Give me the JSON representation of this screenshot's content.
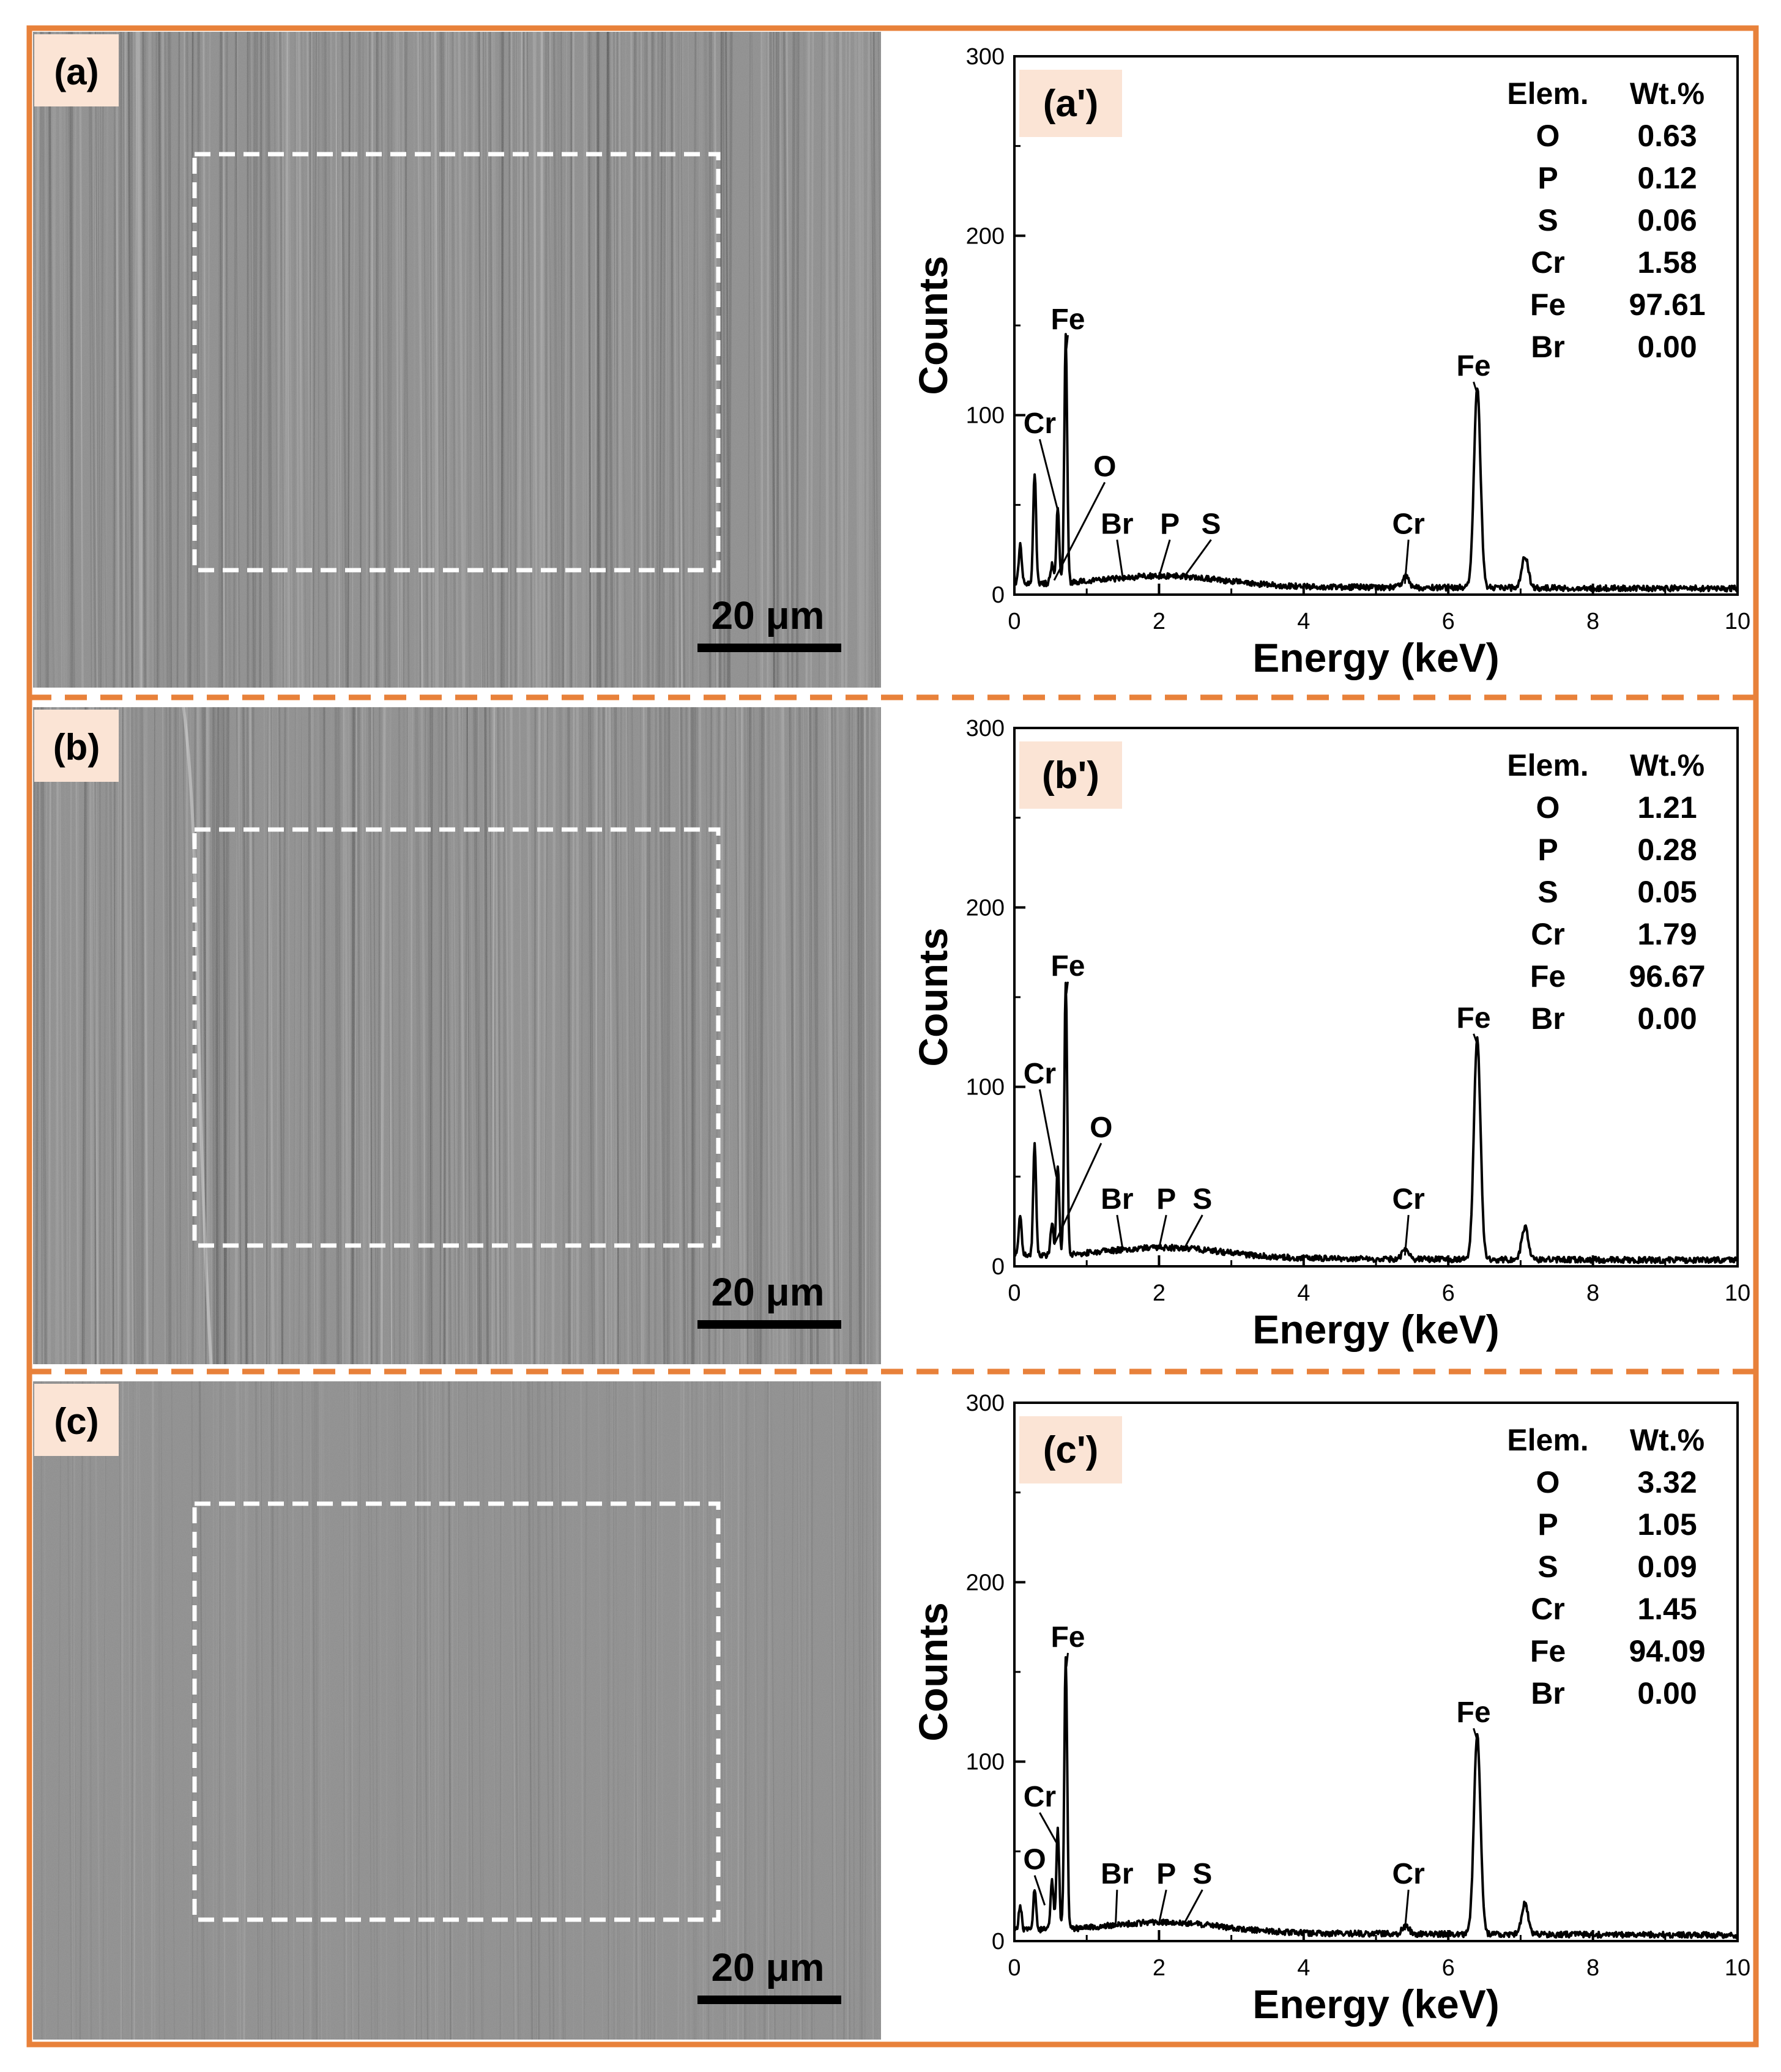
{
  "colors": {
    "frame": "#E8813A",
    "label_bg": "#FBE4D5",
    "sem_base": "#8c8c8c",
    "roi": "#ffffff",
    "ink": "#000000"
  },
  "chart_data": [
    {
      "panel": "a",
      "sem": {
        "label": "(a)",
        "scale_bar_text": "20 μm"
      },
      "spectrum": {
        "type": "line",
        "label": "(a')",
        "xlabel": "Energy (keV)",
        "ylabel": "Counts",
        "xlim": [
          0,
          10
        ],
        "ylim": [
          0,
          300
        ],
        "xticks": [
          "0",
          "2",
          "4",
          "6",
          "8",
          "10"
        ],
        "yticks": [
          "0",
          "100",
          "200",
          "300"
        ],
        "table": {
          "header": [
            "Elem.",
            "Wt.%"
          ],
          "rows": [
            [
              "O",
              "0.63"
            ],
            [
              "P",
              "0.12"
            ],
            [
              "S",
              "0.06"
            ],
            [
              "Cr",
              "1.58"
            ],
            [
              "Fe",
              "97.61"
            ],
            [
              "Br",
              "0.00"
            ]
          ]
        },
        "peaks": [
          {
            "e": 0.08,
            "h": 22
          },
          {
            "e": 0.28,
            "h": 62
          },
          {
            "e": 0.52,
            "h": 10
          },
          {
            "e": 0.6,
            "h": 42
          },
          {
            "e": 0.71,
            "h": 137
          },
          {
            "e": 5.41,
            "h": 6
          },
          {
            "e": 6.4,
            "h": 112
          },
          {
            "e": 7.06,
            "h": 18
          }
        ],
        "annotations": [
          {
            "text": "Fe",
            "e": 0.74,
            "c": 148,
            "pe": 0.72,
            "pc": 137
          },
          {
            "text": "Cr",
            "e": 0.35,
            "c": 90,
            "pe": 0.6,
            "pc": 47
          },
          {
            "text": "O",
            "e": 1.25,
            "c": 66,
            "pe": 0.55,
            "pc": 8
          },
          {
            "text": "Br",
            "e": 1.42,
            "c": 34,
            "pe": 1.5,
            "pc": 9
          },
          {
            "text": "P",
            "e": 2.15,
            "c": 34,
            "pe": 2.0,
            "pc": 10
          },
          {
            "text": "S",
            "e": 2.72,
            "c": 34,
            "pe": 2.35,
            "pc": 10
          },
          {
            "text": "Cr",
            "e": 5.45,
            "c": 34,
            "pe": 5.4,
            "pc": 6
          },
          {
            "text": "Fe",
            "e": 6.35,
            "c": 122,
            "pe": 6.4,
            "pc": 112
          }
        ]
      }
    },
    {
      "panel": "b",
      "sem": {
        "label": "(b)",
        "scale_bar_text": "20 μm"
      },
      "spectrum": {
        "type": "line",
        "label": "(b')",
        "xlabel": "Energy (keV)",
        "ylabel": "Counts",
        "xlim": [
          0,
          10
        ],
        "ylim": [
          0,
          300
        ],
        "xticks": [
          "0",
          "2",
          "4",
          "6",
          "8",
          "10"
        ],
        "yticks": [
          "0",
          "100",
          "200",
          "300"
        ],
        "table": {
          "header": [
            "Elem.",
            "Wt.%"
          ],
          "rows": [
            [
              "O",
              "1.21"
            ],
            [
              "P",
              "0.28"
            ],
            [
              "S",
              "0.05"
            ],
            [
              "Cr",
              "1.79"
            ],
            [
              "Fe",
              "96.67"
            ],
            [
              "Br",
              "0.00"
            ]
          ]
        },
        "peaks": [
          {
            "e": 0.08,
            "h": 22
          },
          {
            "e": 0.28,
            "h": 62
          },
          {
            "e": 0.52,
            "h": 18
          },
          {
            "e": 0.6,
            "h": 50
          },
          {
            "e": 0.71,
            "h": 152
          },
          {
            "e": 5.41,
            "h": 6
          },
          {
            "e": 6.4,
            "h": 124
          },
          {
            "e": 7.06,
            "h": 18
          }
        ],
        "annotations": [
          {
            "text": "Fe",
            "e": 0.74,
            "c": 162,
            "pe": 0.72,
            "pc": 152
          },
          {
            "text": "Cr",
            "e": 0.35,
            "c": 102,
            "pe": 0.58,
            "pc": 50
          },
          {
            "text": "O",
            "e": 1.2,
            "c": 72,
            "pe": 0.55,
            "pc": 12
          },
          {
            "text": "Br",
            "e": 1.42,
            "c": 32,
            "pe": 1.5,
            "pc": 9
          },
          {
            "text": "P",
            "e": 2.1,
            "c": 32,
            "pe": 2.0,
            "pc": 10
          },
          {
            "text": "S",
            "e": 2.6,
            "c": 32,
            "pe": 2.35,
            "pc": 10
          },
          {
            "text": "Cr",
            "e": 5.45,
            "c": 32,
            "pe": 5.4,
            "pc": 6
          },
          {
            "text": "Fe",
            "e": 6.35,
            "c": 133,
            "pe": 6.4,
            "pc": 124
          }
        ]
      }
    },
    {
      "panel": "c",
      "sem": {
        "label": "(c)",
        "scale_bar_text": "20 μm"
      },
      "spectrum": {
        "type": "line",
        "label": "(c')",
        "xlabel": "Energy (keV)",
        "ylabel": "Counts",
        "xlim": [
          0,
          10
        ],
        "ylim": [
          0,
          300
        ],
        "xticks": [
          "0",
          "2",
          "4",
          "6",
          "8",
          "10"
        ],
        "yticks": [
          "0",
          "100",
          "200",
          "300"
        ],
        "table": {
          "header": [
            "Elem.",
            "Wt.%"
          ],
          "rows": [
            [
              "O",
              "3.32"
            ],
            [
              "P",
              "1.05"
            ],
            [
              "S",
              "0.09"
            ],
            [
              "Cr",
              "1.45"
            ],
            [
              "Fe",
              "94.09"
            ],
            [
              "Br",
              "0.00"
            ]
          ]
        },
        "peaks": [
          {
            "e": 0.08,
            "h": 14
          },
          {
            "e": 0.28,
            "h": 22
          },
          {
            "e": 0.52,
            "h": 28
          },
          {
            "e": 0.6,
            "h": 55
          },
          {
            "e": 0.71,
            "h": 153
          },
          {
            "e": 5.41,
            "h": 5
          },
          {
            "e": 6.4,
            "h": 112
          },
          {
            "e": 7.06,
            "h": 17
          }
        ],
        "annotations": [
          {
            "text": "Fe",
            "e": 0.74,
            "c": 164,
            "pe": 0.72,
            "pc": 153
          },
          {
            "text": "Cr",
            "e": 0.35,
            "c": 75,
            "pe": 0.58,
            "pc": 55
          },
          {
            "text": "O",
            "e": 0.28,
            "c": 40,
            "pe": 0.42,
            "pc": 20
          },
          {
            "text": "Br",
            "e": 1.42,
            "c": 32,
            "pe": 1.4,
            "pc": 9
          },
          {
            "text": "P",
            "e": 2.1,
            "c": 32,
            "pe": 2.0,
            "pc": 10
          },
          {
            "text": "S",
            "e": 2.6,
            "c": 32,
            "pe": 2.35,
            "pc": 10
          },
          {
            "text": "Cr",
            "e": 5.45,
            "c": 32,
            "pe": 5.4,
            "pc": 6
          },
          {
            "text": "Fe",
            "e": 6.35,
            "c": 122,
            "pe": 6.4,
            "pc": 112
          }
        ]
      }
    }
  ]
}
